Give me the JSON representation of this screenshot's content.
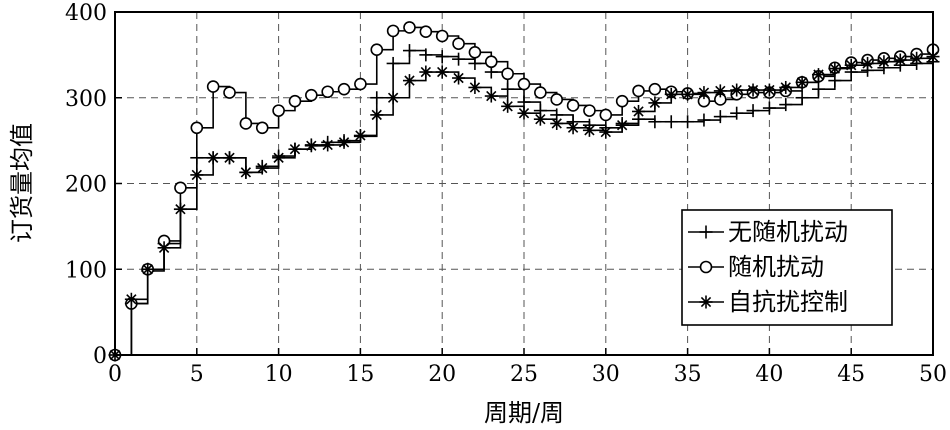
{
  "chart_data": {
    "type": "line",
    "step": true,
    "xlabel": "周期/周",
    "ylabel": "订货量均值",
    "xlim": [
      0,
      50
    ],
    "ylim": [
      0,
      400
    ],
    "x_ticks": [
      0,
      5,
      10,
      15,
      20,
      25,
      30,
      35,
      40,
      45,
      50
    ],
    "y_ticks": [
      0,
      100,
      200,
      300,
      400
    ],
    "grid": true,
    "legend_position": "right-middle",
    "series": [
      {
        "name": "无随机扰动",
        "marker": "plus",
        "color": "#000000",
        "x": [
          0,
          1,
          2,
          3,
          4,
          5,
          6,
          7,
          8,
          9,
          10,
          11,
          12,
          13,
          14,
          15,
          16,
          17,
          18,
          19,
          20,
          21,
          22,
          23,
          24,
          25,
          26,
          27,
          28,
          29,
          30,
          31,
          32,
          33,
          34,
          35,
          36,
          37,
          38,
          39,
          40,
          41,
          42,
          43,
          44,
          45,
          46,
          47,
          48,
          49,
          50
        ],
        "values": [
          0,
          60,
          98,
          130,
          170,
          230,
          230,
          230,
          213,
          220,
          232,
          240,
          245,
          248,
          250,
          255,
          300,
          340,
          355,
          350,
          348,
          345,
          340,
          330,
          310,
          295,
          285,
          280,
          272,
          268,
          265,
          270,
          275,
          272,
          272,
          272,
          274,
          278,
          282,
          285,
          288,
          292,
          300,
          310,
          320,
          330,
          332,
          335,
          338,
          340,
          342
        ]
      },
      {
        "name": "随机扰动",
        "marker": "circle",
        "color": "#000000",
        "x": [
          0,
          1,
          2,
          3,
          4,
          5,
          6,
          7,
          8,
          9,
          10,
          11,
          12,
          13,
          14,
          15,
          16,
          17,
          18,
          19,
          20,
          21,
          22,
          23,
          24,
          25,
          26,
          27,
          28,
          29,
          30,
          31,
          32,
          33,
          34,
          35,
          36,
          37,
          38,
          39,
          40,
          41,
          42,
          43,
          44,
          45,
          46,
          47,
          48,
          49,
          50
        ],
        "values": [
          0,
          60,
          100,
          133,
          195,
          265,
          313,
          306,
          270,
          265,
          285,
          296,
          303,
          307,
          310,
          316,
          356,
          378,
          382,
          377,
          372,
          363,
          353,
          342,
          328,
          316,
          306,
          298,
          291,
          285,
          280,
          296,
          308,
          310,
          307,
          305,
          296,
          298,
          304,
          306,
          306,
          308,
          318,
          325,
          335,
          341,
          344,
          346,
          348,
          351,
          356
        ]
      },
      {
        "name": "自抗扰控制",
        "marker": "star",
        "color": "#000000",
        "x": [
          0,
          1,
          2,
          3,
          4,
          5,
          6,
          7,
          8,
          9,
          10,
          11,
          12,
          13,
          14,
          15,
          16,
          17,
          18,
          19,
          20,
          21,
          22,
          23,
          24,
          25,
          26,
          27,
          28,
          29,
          30,
          31,
          32,
          33,
          34,
          35,
          36,
          37,
          38,
          39,
          40,
          41,
          42,
          43,
          44,
          45,
          46,
          47,
          48,
          49,
          50
        ],
        "values": [
          0,
          65,
          100,
          125,
          170,
          210,
          230,
          230,
          213,
          218,
          230,
          240,
          244,
          245,
          248,
          256,
          280,
          300,
          320,
          330,
          330,
          323,
          312,
          302,
          290,
          282,
          275,
          270,
          265,
          262,
          260,
          268,
          284,
          294,
          304,
          304,
          306,
          308,
          309,
          309,
          309,
          312,
          318,
          327,
          334,
          338,
          340,
          342,
          344,
          346,
          348
        ]
      }
    ]
  }
}
